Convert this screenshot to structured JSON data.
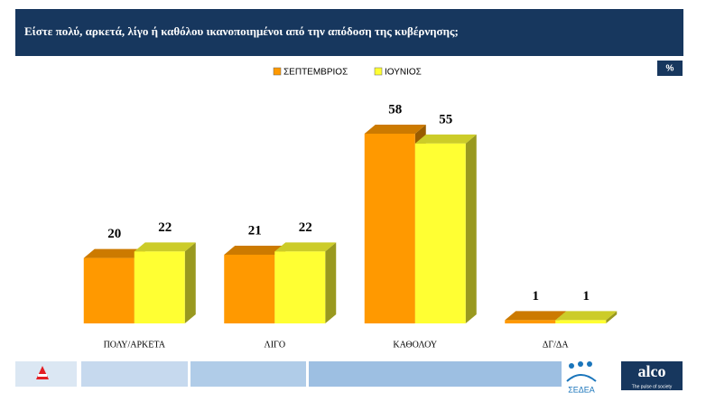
{
  "chart_data": {
    "type": "bar3d",
    "title": "Είστε πολύ, αρκετά, λίγο ή καθόλου ικανοποιημένοι από την  απόδοση της κυβέρνησης;",
    "unit": "%",
    "categories": [
      "ΠΟΛΥ/ΑΡΚΕΤΑ",
      "ΛΙΓΟ",
      "ΚΑΘΟΛΟΥ",
      "ΔΓ/ΔΑ"
    ],
    "series": [
      {
        "name": "ΣΕΠΤΕΜΒΡΙΟΣ",
        "color": "#ff9900",
        "values": [
          20,
          21,
          58,
          1
        ]
      },
      {
        "name": "ΙΟΥΝΙΟΣ",
        "color": "#ffff33",
        "values": [
          22,
          22,
          55,
          1
        ]
      }
    ]
  },
  "logos": {
    "sedea": "ΣΕΔΕΑ",
    "alco": "alco",
    "alco_tagline": "The pulse of society"
  }
}
